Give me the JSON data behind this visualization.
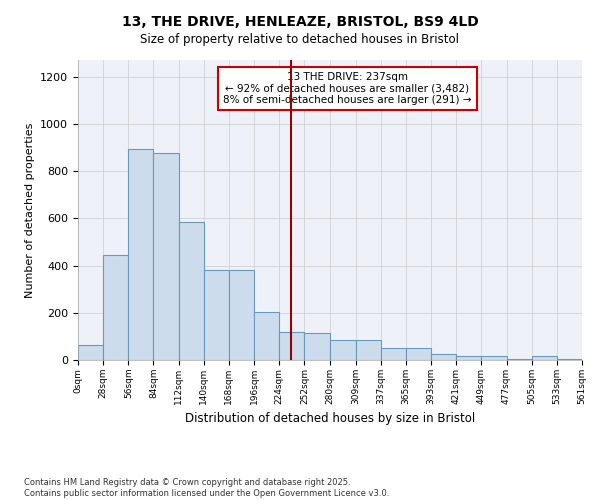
{
  "title1": "13, THE DRIVE, HENLEAZE, BRISTOL, BS9 4LD",
  "title2": "Size of property relative to detached houses in Bristol",
  "xlabel": "Distribution of detached houses by size in Bristol",
  "ylabel": "Number of detached properties",
  "footnote": "Contains HM Land Registry data © Crown copyright and database right 2025.\nContains public sector information licensed under the Open Government Licence v3.0.",
  "bin_edges": [
    0,
    28,
    56,
    84,
    112,
    140,
    168,
    196,
    224,
    252,
    280,
    309,
    337,
    365,
    393,
    421,
    449,
    477,
    505,
    533,
    561
  ],
  "bar_heights": [
    65,
    445,
    895,
    875,
    585,
    380,
    380,
    205,
    120,
    115,
    85,
    85,
    50,
    50,
    25,
    15,
    15,
    5,
    15,
    5
  ],
  "bar_color": "#ccdcec",
  "bar_edge_color": "#6699bb",
  "grid_color": "#cccccc",
  "vline_x": 237,
  "vline_color": "#990000",
  "annotation_text": "13 THE DRIVE: 237sqm\n← 92% of detached houses are smaller (3,482)\n8% of semi-detached houses are larger (291) →",
  "annotation_box_color": "#cc0000",
  "ylim": [
    0,
    1270
  ],
  "yticks": [
    0,
    200,
    400,
    600,
    800,
    1000,
    1200
  ],
  "background_color": "#eef2f8",
  "tick_labels": [
    "0sqm",
    "28sqm",
    "56sqm",
    "84sqm",
    "112sqm",
    "140sqm",
    "168sqm",
    "196sqm",
    "224sqm",
    "252sqm",
    "280sqm",
    "309sqm",
    "337sqm",
    "365sqm",
    "393sqm",
    "421sqm",
    "449sqm",
    "477sqm",
    "505sqm",
    "533sqm",
    "561sqm"
  ]
}
